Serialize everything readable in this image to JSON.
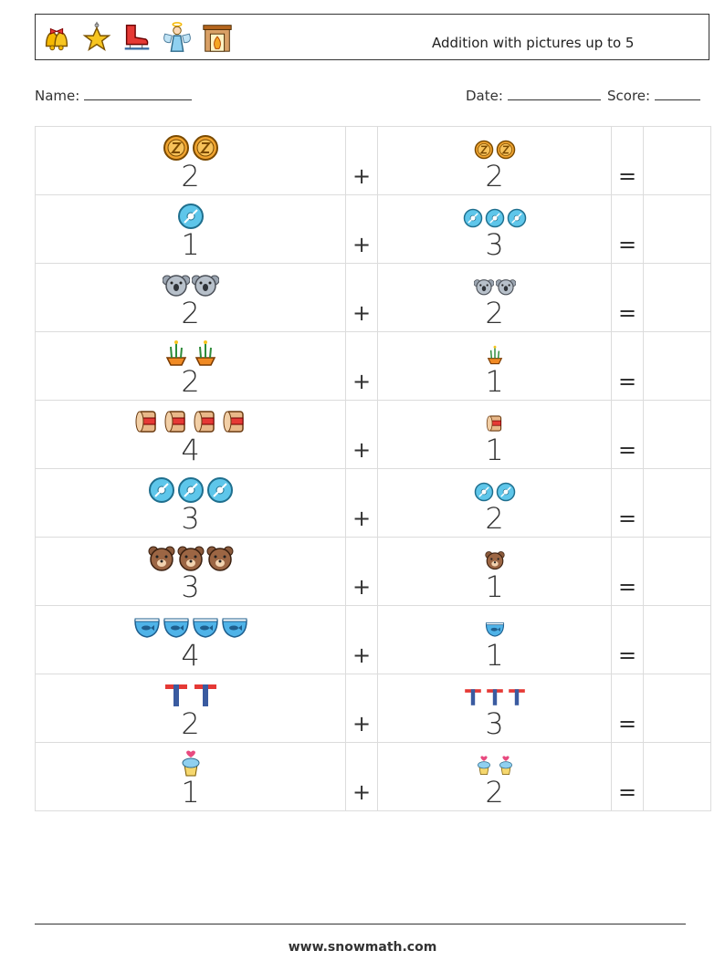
{
  "header": {
    "title": "Addition with pictures up to 5",
    "icons": [
      "bells-icon",
      "star-ornament-icon",
      "ice-skate-icon",
      "angel-icon",
      "fireplace-icon"
    ]
  },
  "fields": {
    "name_label": "Name:",
    "date_label": "Date:",
    "score_label": "Score:"
  },
  "symbols": {
    "plus": "+",
    "equals": "="
  },
  "rows": [
    {
      "a": 2,
      "b": 2,
      "pic": "coin"
    },
    {
      "a": 1,
      "b": 3,
      "pic": "disc"
    },
    {
      "a": 2,
      "b": 2,
      "pic": "koala"
    },
    {
      "a": 2,
      "b": 1,
      "pic": "plant"
    },
    {
      "a": 4,
      "b": 1,
      "pic": "drum"
    },
    {
      "a": 3,
      "b": 2,
      "pic": "disc"
    },
    {
      "a": 3,
      "b": 1,
      "pic": "bear"
    },
    {
      "a": 4,
      "b": 1,
      "pic": "bowl"
    },
    {
      "a": 2,
      "b": 3,
      "pic": "letter-t"
    },
    {
      "a": 1,
      "b": 2,
      "pic": "cupcake"
    }
  ],
  "footer": {
    "url": "www.snowmath.com"
  }
}
